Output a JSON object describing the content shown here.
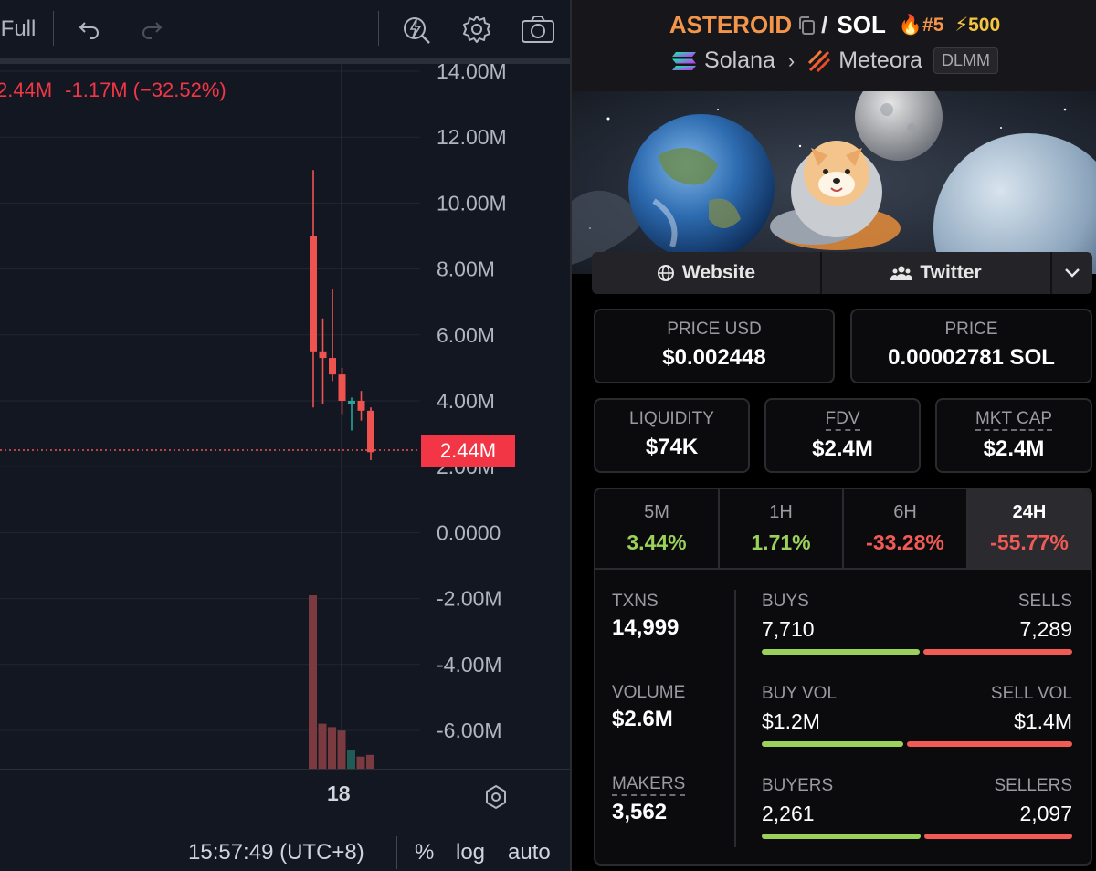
{
  "chart": {
    "layout_label": "Full",
    "legend": {
      "price": "2.44M",
      "change": "-1.17M",
      "change_pct": "(−32.52%)"
    },
    "y_axis_ticks": [
      "14.00M",
      "12.00M",
      "10.00M",
      "8.00M",
      "6.00M",
      "4.00M",
      "2.00M",
      "0.0000",
      "-2.00M",
      "-4.00M",
      "-6.00M"
    ],
    "current_price_badge": "2.44M",
    "time_axis_label": "18",
    "bottom_bar": {
      "time": "15:57:49 (UTC+8)",
      "percent": "%",
      "log": "log",
      "auto": "auto"
    },
    "colors": {
      "up": "#26a69a",
      "down": "#ef5350",
      "grid": "#22262f"
    }
  },
  "chart_data": {
    "type": "candlestick",
    "y_unit": "USD market cap",
    "ylim": [
      -7000000,
      14000000
    ],
    "candles": [
      {
        "open": 9.0,
        "high": 11.0,
        "low": 3.8,
        "close": 5.5
      },
      {
        "open": 5.5,
        "high": 6.5,
        "low": 3.9,
        "close": 5.3
      },
      {
        "open": 5.3,
        "high": 7.4,
        "low": 4.6,
        "close": 4.8
      },
      {
        "open": 4.8,
        "high": 5.0,
        "low": 3.6,
        "close": 4.0
      },
      {
        "open": 3.9,
        "high": 4.1,
        "low": 3.1,
        "close": 4.0
      },
      {
        "open": 4.0,
        "high": 4.3,
        "low": 3.4,
        "close": 3.7
      },
      {
        "open": 3.7,
        "high": 3.8,
        "low": 2.2,
        "close": 2.44
      }
    ],
    "volume_relative": [
      1.0,
      0.26,
      0.24,
      0.22,
      0.11,
      0.07,
      0.08
    ]
  },
  "token": {
    "base_symbol": "ASTEROID",
    "quote_symbol": "SOL",
    "rank": "#5",
    "boost": "500",
    "chain": "Solana",
    "dex": "Meteora",
    "dex_badge": "DLMM",
    "website_label": "Website",
    "twitter_label": "Twitter"
  },
  "prices": {
    "price_usd_label": "PRICE USD",
    "price_usd": "$0.002448",
    "price_label": "PRICE",
    "price_native": "0.00002781 SOL"
  },
  "metrics": {
    "liquidity_label": "LIQUIDITY",
    "liquidity": "$74K",
    "fdv_label": "FDV",
    "fdv": "$2.4M",
    "mcap_label": "MKT CAP",
    "mcap": "$2.4M"
  },
  "timeframes": [
    {
      "label": "5M",
      "value": "3.44%"
    },
    {
      "label": "1H",
      "value": "1.71%"
    },
    {
      "label": "6H",
      "value": "-33.28%"
    },
    {
      "label": "24H",
      "value": "-55.77%"
    }
  ],
  "txns": {
    "txns_label": "TXNS",
    "txns": "14,999",
    "volume_label": "VOLUME",
    "volume": "$2.6M",
    "makers_label": "MAKERS",
    "makers": "3,562",
    "buys_label": "BUYS",
    "sells_label": "SELLS",
    "buys": "7,710",
    "sells": "7,289",
    "buys_ratio": 0.514,
    "buy_vol_label": "BUY VOL",
    "sell_vol_label": "SELL VOL",
    "buy_vol": "$1.2M",
    "sell_vol": "$1.4M",
    "buy_vol_ratio": 0.462,
    "buyers_label": "BUYERS",
    "sellers_label": "SELLERS",
    "buyers": "2,261",
    "sellers": "2,097",
    "buyers_ratio": 0.519
  }
}
